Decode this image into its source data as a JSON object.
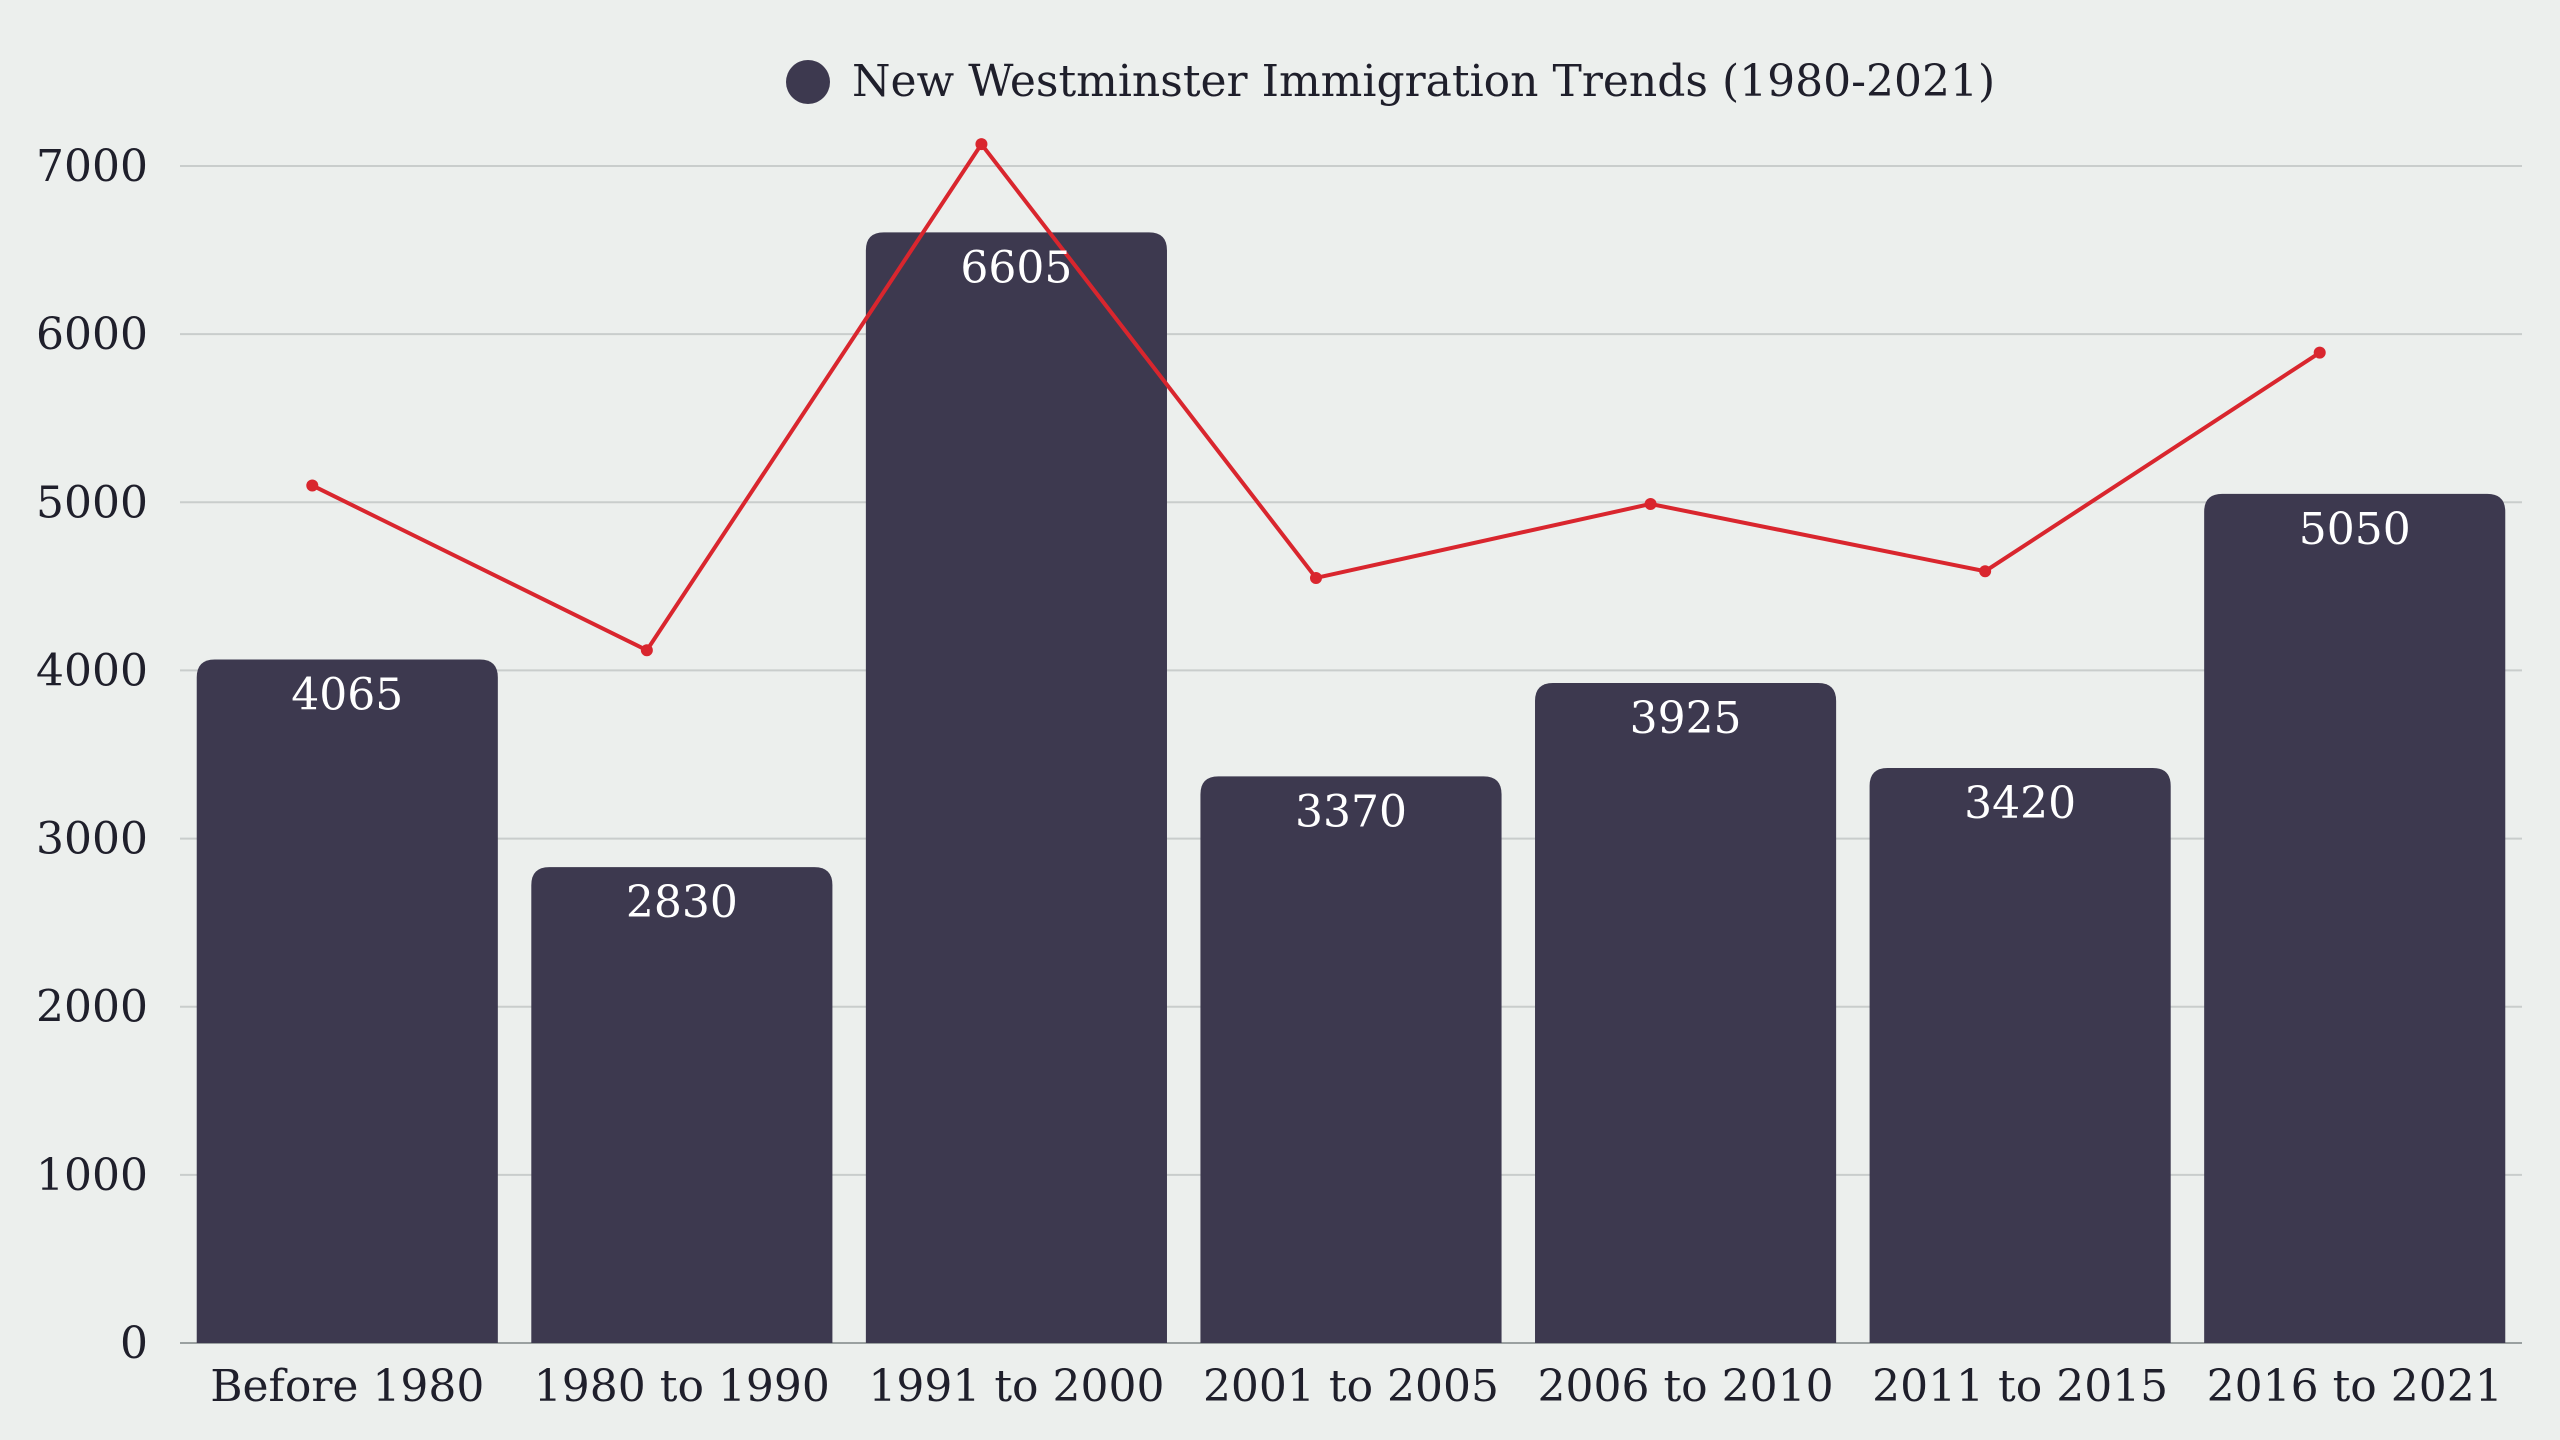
{
  "chart_data": {
    "type": "bar",
    "categories": [
      "Before 1980",
      "1980 to 1990",
      "1991 to 2000",
      "2001 to 2005",
      "2006 to 2010",
      "2011 to 2015",
      "2016 to 2021"
    ],
    "series": [
      {
        "name": "New Westminster Immigration Trends (1980-2021)",
        "type": "bar",
        "values": [
          4065,
          2830,
          6605,
          3370,
          3925,
          3420,
          5050
        ],
        "color": "#3d394f"
      },
      {
        "type": "line",
        "values": [
          5100,
          4120,
          7130,
          4550,
          4990,
          4590,
          5890
        ],
        "color": "#d9262e"
      }
    ],
    "legend": {
      "position": "top-center",
      "label": "New Westminster Immigration Trends (1980-2021)"
    },
    "ylim": [
      0,
      7000
    ],
    "yticks": [
      "0",
      "1000",
      "2000",
      "3000",
      "4000",
      "5000",
      "6000",
      "7000"
    ],
    "grid": true
  }
}
